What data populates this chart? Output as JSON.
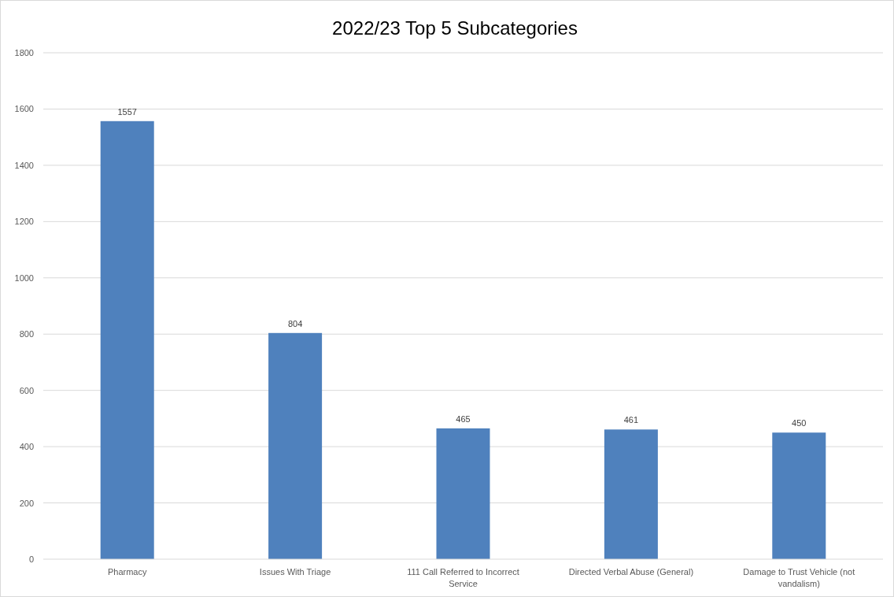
{
  "chart_data": {
    "type": "bar",
    "title": "2022/23 Top 5 Subcategories",
    "categories": [
      "Pharmacy",
      "Issues With Triage",
      "111 Call Referred to Incorrect Service",
      "Directed Verbal Abuse (General)",
      "Damage to Trust Vehicle (not vandalism)"
    ],
    "values": [
      1557,
      804,
      465,
      461,
      450
    ],
    "color": "#4f81bd",
    "ylim": [
      0,
      1800
    ],
    "yticks": [
      0,
      200,
      400,
      600,
      800,
      1000,
      1200,
      1400,
      1600,
      1800
    ],
    "grid": "y",
    "data_labels": true
  }
}
